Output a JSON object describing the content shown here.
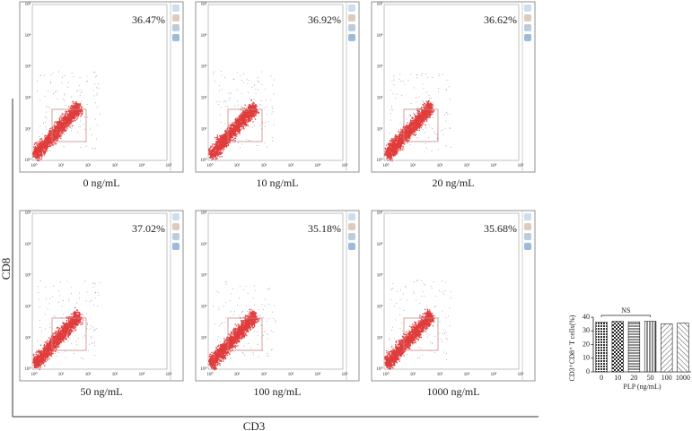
{
  "panels": [
    {
      "percent": "36.47%",
      "label": "0 ng/mL"
    },
    {
      "percent": "36.92%",
      "label": "10 ng/mL"
    },
    {
      "percent": "36.62%",
      "label": "20 ng/mL"
    },
    {
      "percent": "37.02%",
      "label": "50 ng/mL"
    },
    {
      "percent": "35.18%",
      "label": "100 ng/mL"
    },
    {
      "percent": "35.68%",
      "label": "1000 ng/mL"
    }
  ],
  "flow_ticks": [
    "10⁰",
    "10¹",
    "10²",
    "10³",
    "10⁴",
    "10⁵"
  ],
  "y_axis_label": "CD8",
  "x_axis_label": "CD3",
  "chart_data": {
    "type": "bar",
    "ylabel": "CD3⁺CD8⁺ T cells(%)",
    "xlabel": "PLP (ng/mL)",
    "annotation": "NS",
    "categories": [
      "0",
      "10",
      "20",
      "50",
      "100",
      "1000"
    ],
    "values": [
      36.47,
      36.92,
      36.62,
      37.02,
      35.18,
      35.68
    ],
    "ylim": [
      0,
      40
    ],
    "yticks": [
      0,
      10,
      20,
      30,
      40
    ]
  }
}
